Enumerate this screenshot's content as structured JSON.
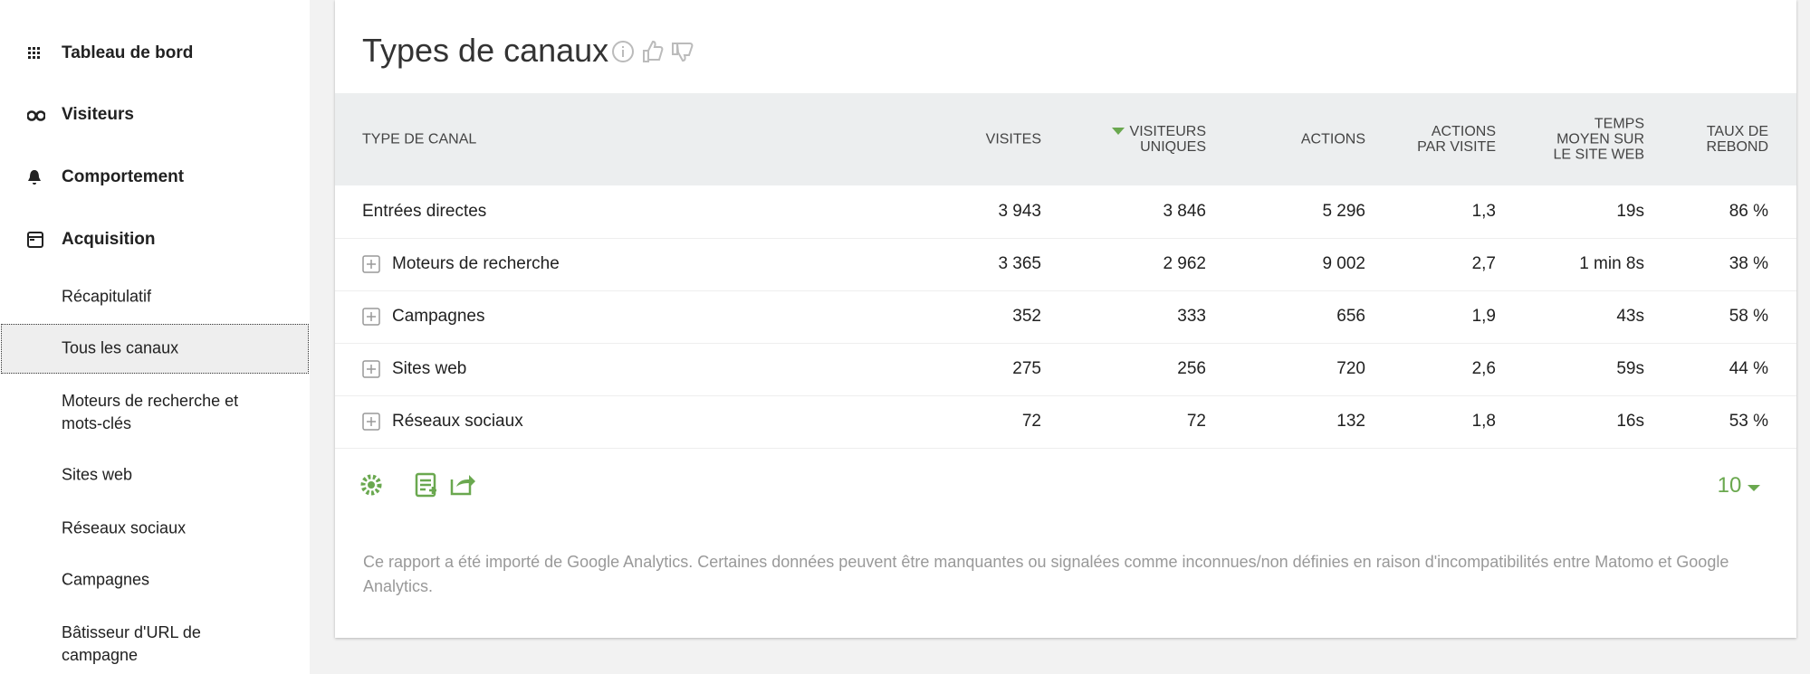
{
  "sidebar": {
    "sections": [
      "Tableau de bord",
      "Visiteurs",
      "Comportement",
      "Acquisition"
    ],
    "items": [
      "Récapitulatif",
      "Tous les canaux",
      "Moteurs de recherche et mots-clés",
      "Sites web",
      "Réseaux sociaux",
      "Campagnes",
      "Bâtisseur d'URL de campagne"
    ],
    "selected_item": 1
  },
  "report": {
    "title": "Types de canaux",
    "columns": [
      [
        "TYPE DE CANAL"
      ],
      [
        "VISITES"
      ],
      [
        "VISITEURS",
        "UNIQUES"
      ],
      [
        "ACTIONS"
      ],
      [
        "ACTIONS",
        "PAR VISITE"
      ],
      [
        "TEMPS",
        "MOYEN SUR",
        "LE SITE WEB"
      ],
      [
        "TAUX DE",
        "REBOND"
      ]
    ],
    "sorted_column": 2,
    "rows": [
      {
        "expandable": false,
        "cells": [
          "Entrées directes",
          "3 943",
          "3 846",
          "5 296",
          "1,3",
          "19s",
          "86 %"
        ]
      },
      {
        "expandable": true,
        "cells": [
          "Moteurs de recherche",
          "3 365",
          "2 962",
          "9 002",
          "2,7",
          "1 min 8s",
          "38 %"
        ]
      },
      {
        "expandable": true,
        "cells": [
          "Campagnes",
          "352",
          "333",
          "656",
          "1,9",
          "43s",
          "58 %"
        ]
      },
      {
        "expandable": true,
        "cells": [
          "Sites web",
          "275",
          "256",
          "720",
          "2,6",
          "59s",
          "44 %"
        ]
      },
      {
        "expandable": true,
        "cells": [
          "Réseaux sociaux",
          "72",
          "72",
          "132",
          "1,8",
          "16s",
          "53 %"
        ]
      }
    ],
    "page_size": "10",
    "note": "Ce rapport a été importé de Google Analytics. Certaines données peuvent être manquantes ou signalées comme inconnues/non définies en raison d'incompatibilités entre Matomo et Google Analytics."
  }
}
